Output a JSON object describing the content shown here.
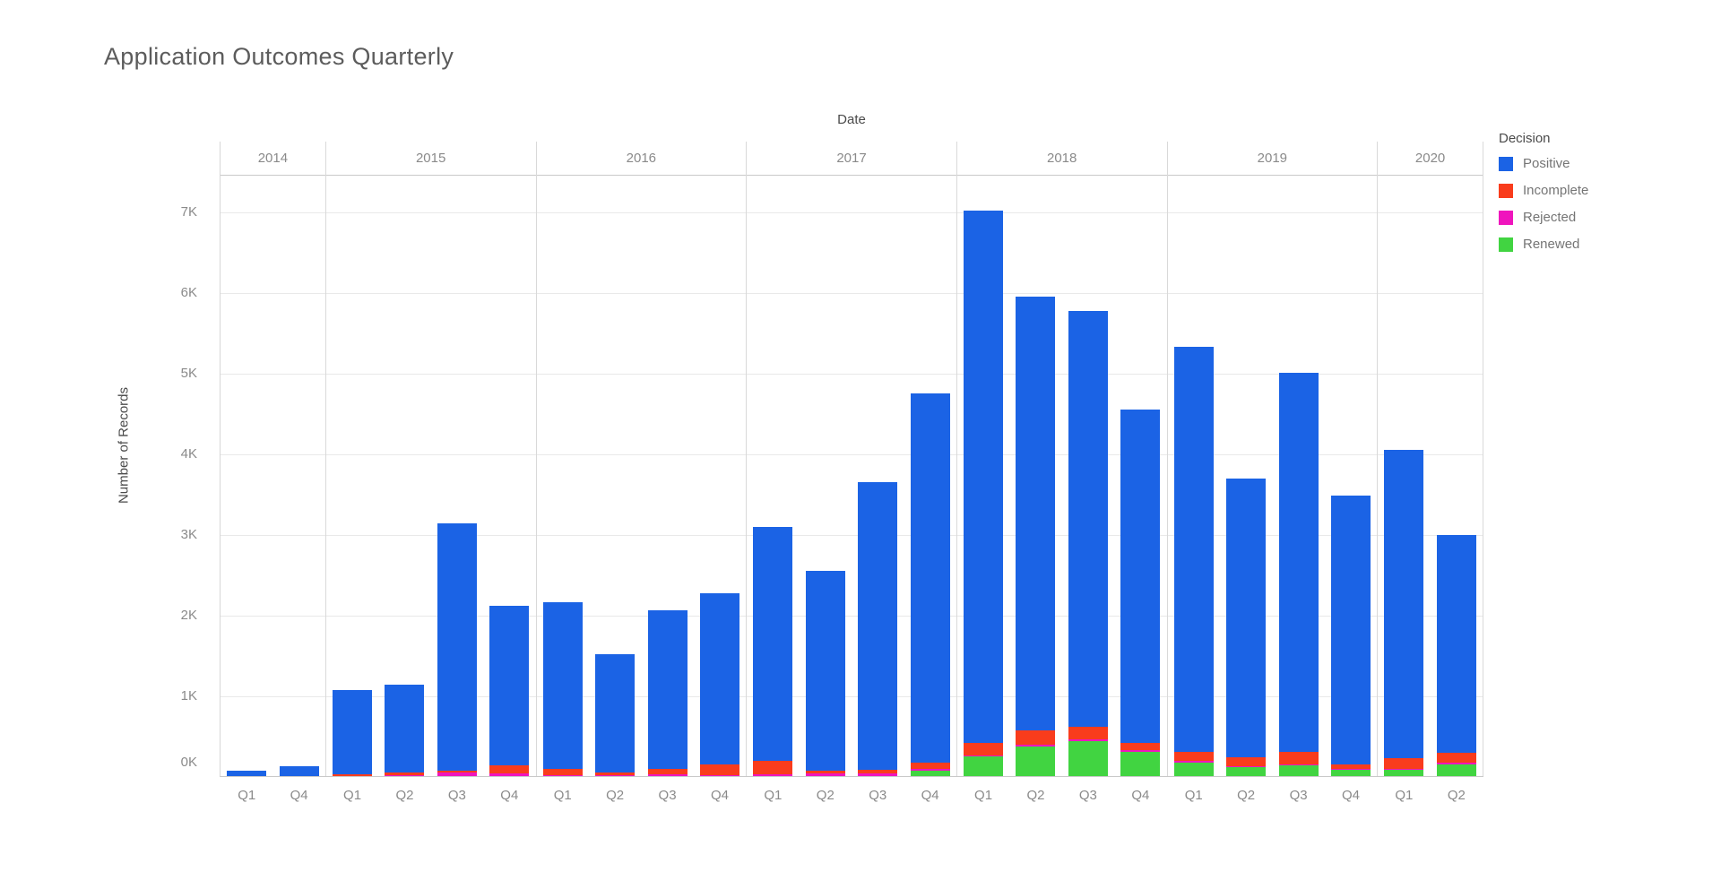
{
  "title": "Application Outcomes Quarterly",
  "axes": {
    "x_title": "Date",
    "y_title": "Number of Records",
    "y_ticks": [
      "0K",
      "1K",
      "2K",
      "3K",
      "4K",
      "5K",
      "6K",
      "7K"
    ]
  },
  "legend": {
    "title": "Decision",
    "items": [
      {
        "label": "Positive",
        "color": "#1b63e5"
      },
      {
        "label": "Incomplete",
        "color": "#f93c1c"
      },
      {
        "label": "Rejected",
        "color": "#ef15bd"
      },
      {
        "label": "Renewed",
        "color": "#41d441"
      }
    ]
  },
  "chart_data": {
    "type": "bar",
    "stacked": true,
    "value_unit": "thousands of records (K)",
    "title": "Application Outcomes Quarterly",
    "xlabel": "Date",
    "ylabel": "Number of Records",
    "ylim_k": [
      0,
      7.45
    ],
    "grid": true,
    "legend_position": "top-right",
    "stack_order_bottom_to_top": [
      "Renewed",
      "Rejected",
      "Incomplete",
      "Positive"
    ],
    "groups": [
      {
        "year": "2014",
        "bars": [
          {
            "quarter": "Q1",
            "values": {
              "Renewed": 0,
              "Rejected": 0,
              "Incomplete": 0,
              "Positive": 0.07
            }
          },
          {
            "quarter": "Q4",
            "values": {
              "Renewed": 0,
              "Rejected": 0,
              "Incomplete": 0,
              "Positive": 0.12
            }
          }
        ]
      },
      {
        "year": "2015",
        "bars": [
          {
            "quarter": "Q1",
            "values": {
              "Renewed": 0,
              "Rejected": 0,
              "Incomplete": 0.02,
              "Positive": 1.05
            }
          },
          {
            "quarter": "Q2",
            "values": {
              "Renewed": 0,
              "Rejected": 0.01,
              "Incomplete": 0.03,
              "Positive": 1.09
            }
          },
          {
            "quarter": "Q3",
            "values": {
              "Renewed": 0,
              "Rejected": 0.05,
              "Incomplete": 0.02,
              "Positive": 3.06
            }
          },
          {
            "quarter": "Q4",
            "values": {
              "Renewed": 0,
              "Rejected": 0.03,
              "Incomplete": 0.1,
              "Positive": 1.98
            }
          }
        ]
      },
      {
        "year": "2016",
        "bars": [
          {
            "quarter": "Q1",
            "values": {
              "Renewed": 0,
              "Rejected": 0.01,
              "Incomplete": 0.08,
              "Positive": 2.07
            }
          },
          {
            "quarter": "Q2",
            "values": {
              "Renewed": 0,
              "Rejected": 0.01,
              "Incomplete": 0.03,
              "Positive": 1.47
            }
          },
          {
            "quarter": "Q3",
            "values": {
              "Renewed": 0,
              "Rejected": 0.02,
              "Incomplete": 0.07,
              "Positive": 1.97
            }
          },
          {
            "quarter": "Q4",
            "values": {
              "Renewed": 0,
              "Rejected": 0.01,
              "Incomplete": 0.14,
              "Positive": 2.12
            }
          }
        ]
      },
      {
        "year": "2017",
        "bars": [
          {
            "quarter": "Q1",
            "values": {
              "Renewed": 0,
              "Rejected": 0.02,
              "Incomplete": 0.17,
              "Positive": 2.9
            }
          },
          {
            "quarter": "Q2",
            "values": {
              "Renewed": 0,
              "Rejected": 0.03,
              "Incomplete": 0.04,
              "Positive": 2.47
            }
          },
          {
            "quarter": "Q3",
            "values": {
              "Renewed": 0,
              "Rejected": 0.03,
              "Incomplete": 0.05,
              "Positive": 3.57
            }
          },
          {
            "quarter": "Q4",
            "values": {
              "Renewed": 0.07,
              "Rejected": 0.02,
              "Incomplete": 0.08,
              "Positive": 4.58
            }
          }
        ]
      },
      {
        "year": "2018",
        "bars": [
          {
            "quarter": "Q1",
            "values": {
              "Renewed": 0.24,
              "Rejected": 0.02,
              "Incomplete": 0.15,
              "Positive": 6.6
            }
          },
          {
            "quarter": "Q2",
            "values": {
              "Renewed": 0.37,
              "Rejected": 0.02,
              "Incomplete": 0.18,
              "Positive": 5.38
            }
          },
          {
            "quarter": "Q3",
            "values": {
              "Renewed": 0.43,
              "Rejected": 0.03,
              "Incomplete": 0.15,
              "Positive": 5.16
            }
          },
          {
            "quarter": "Q4",
            "values": {
              "Renewed": 0.3,
              "Rejected": 0.02,
              "Incomplete": 0.09,
              "Positive": 4.14
            }
          }
        ]
      },
      {
        "year": "2019",
        "bars": [
          {
            "quarter": "Q1",
            "values": {
              "Renewed": 0.17,
              "Rejected": 0.02,
              "Incomplete": 0.11,
              "Positive": 5.02
            }
          },
          {
            "quarter": "Q2",
            "values": {
              "Renewed": 0.11,
              "Rejected": 0.01,
              "Incomplete": 0.11,
              "Positive": 3.46
            }
          },
          {
            "quarter": "Q3",
            "values": {
              "Renewed": 0.13,
              "Rejected": 0.02,
              "Incomplete": 0.15,
              "Positive": 4.7
            }
          },
          {
            "quarter": "Q4",
            "values": {
              "Renewed": 0.08,
              "Rejected": 0.01,
              "Incomplete": 0.05,
              "Positive": 3.34
            }
          }
        ]
      },
      {
        "year": "2020",
        "bars": [
          {
            "quarter": "Q1",
            "values": {
              "Renewed": 0.08,
              "Rejected": 0.01,
              "Incomplete": 0.13,
              "Positive": 3.82
            }
          },
          {
            "quarter": "Q2",
            "values": {
              "Renewed": 0.15,
              "Rejected": 0.02,
              "Incomplete": 0.12,
              "Positive": 2.7
            }
          }
        ]
      }
    ]
  }
}
